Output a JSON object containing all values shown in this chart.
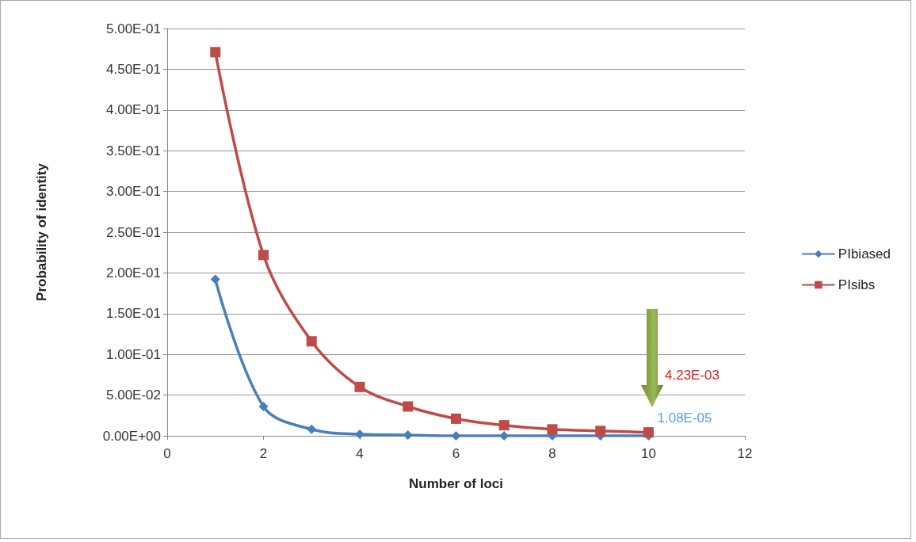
{
  "chart_data": {
    "type": "line",
    "xlabel": "Number of loci",
    "ylabel": "Probability of identity",
    "x": [
      1,
      2,
      3,
      4,
      5,
      6,
      7,
      8,
      9,
      10
    ],
    "series": [
      {
        "name": "PIbiased",
        "color": "#4a7ebb",
        "marker": "diamond",
        "values": [
          0.192,
          0.036,
          0.008,
          0.002,
          0.001,
          0,
          0,
          0,
          0,
          1.08e-05
        ]
      },
      {
        "name": "PIsibs",
        "color": "#be4b48",
        "marker": "square",
        "values": [
          0.471,
          0.222,
          0.116,
          0.06,
          0.036,
          0.021,
          0.013,
          0.008,
          0.006,
          0.00423
        ]
      }
    ],
    "xlim": [
      0,
      12
    ],
    "xticks": [
      0,
      2,
      4,
      6,
      8,
      10,
      12
    ],
    "ylim": [
      0,
      0.5
    ],
    "yticks": [
      {
        "value": 0,
        "label": "0.00E+00"
      },
      {
        "value": 0.05,
        "label": "5.00E-02"
      },
      {
        "value": 0.1,
        "label": "1.00E-01"
      },
      {
        "value": 0.15,
        "label": "1.50E-01"
      },
      {
        "value": 0.2,
        "label": "2.00E-01"
      },
      {
        "value": 0.25,
        "label": "2.50E-01"
      },
      {
        "value": 0.3,
        "label": "3.00E-01"
      },
      {
        "value": 0.35,
        "label": "3.50E-01"
      },
      {
        "value": 0.4,
        "label": "4.00E-01"
      },
      {
        "value": 0.45,
        "label": "4.50E-01"
      },
      {
        "value": 0.5,
        "label": "5.00E-01"
      }
    ],
    "grid": "y",
    "legend": "right",
    "line_style": "solid",
    "annotations": [
      "4.23E-03",
      {
        "text": "1.08E-05",
        "x": 10,
        "y": 1.08e-05
      }
    ]
  }
}
